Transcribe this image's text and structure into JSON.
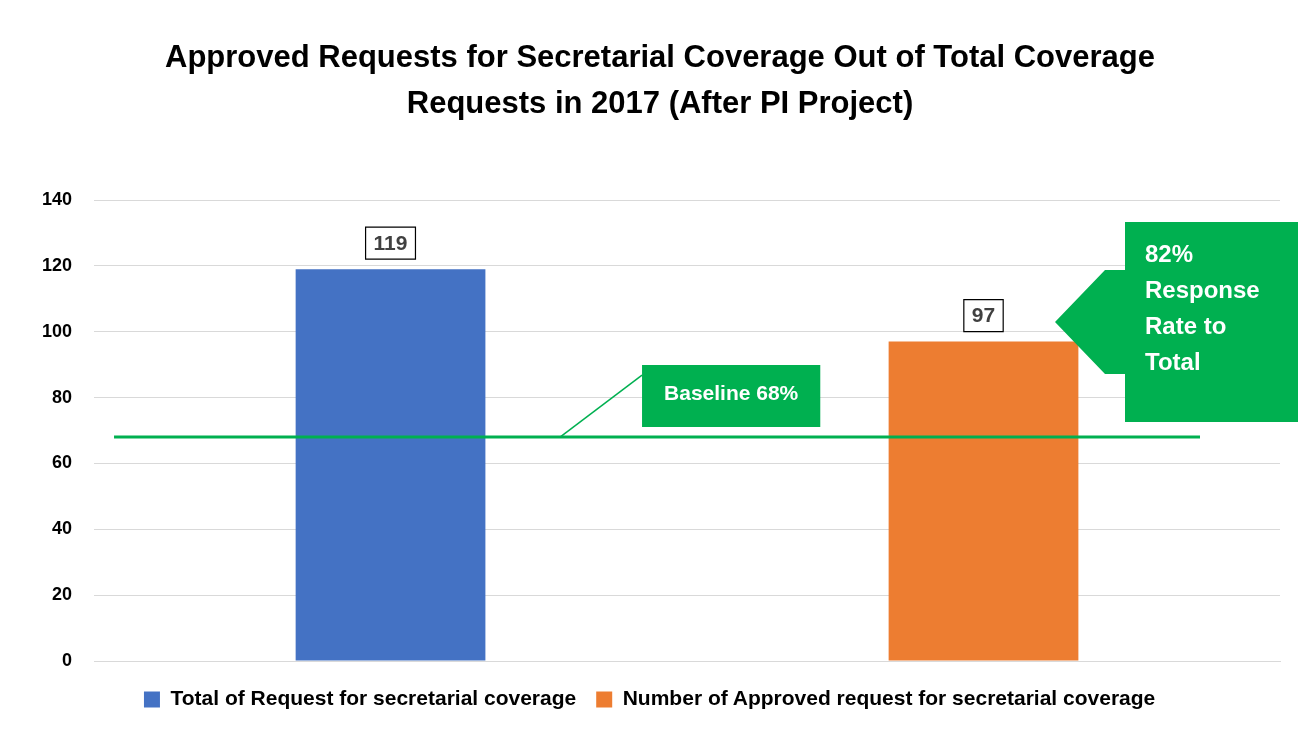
{
  "chart_data": {
    "type": "bar",
    "title": "Approved Requests for Secretarial Coverage Out of Total Coverage Requests in 2017 (After PI Project)",
    "categories": [
      null,
      null
    ],
    "series": [
      {
        "name": "Total of Request for secretarial coverage",
        "color": "#4472c4",
        "values": [
          119,
          null
        ]
      },
      {
        "name": "Number of Approved request for secretarial coverage",
        "color": "#ed7d31",
        "values": [
          null,
          97
        ]
      }
    ],
    "ylim": [
      0,
      140
    ],
    "yticks": [
      0,
      20,
      40,
      60,
      80,
      100,
      120,
      140
    ],
    "grid": "y",
    "tick_labels": "y",
    "legend": "bottom",
    "data_labels": true,
    "ref_lines": [
      {
        "axis": "y",
        "value": 68,
        "label": "Baseline 68%",
        "color": "#00b050"
      }
    ],
    "annotations": [
      "82% Response Rate to Total"
    ]
  }
}
